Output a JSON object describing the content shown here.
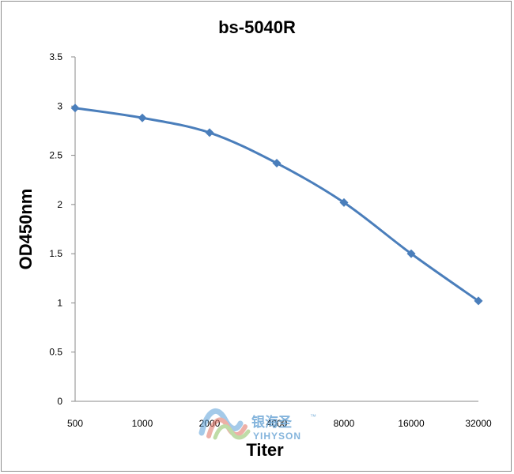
{
  "chart_data": {
    "type": "line",
    "title": "bs-5040R",
    "xlabel": "Titer",
    "ylabel": "OD450nm",
    "categories": [
      "500",
      "1000",
      "2000",
      "4000",
      "8000",
      "16000",
      "32000"
    ],
    "series": [
      {
        "values": [
          2.98,
          2.88,
          2.73,
          2.42,
          2.02,
          1.5,
          1.02
        ]
      }
    ],
    "ylim": [
      0,
      3.5
    ],
    "yticks": [
      "0",
      "0.5",
      "1",
      "1.5",
      "2",
      "2.5",
      "3",
      "3.5"
    ],
    "grid": false,
    "series_color": "#4a7ebb"
  },
  "watermark": {
    "cn": "银海圣",
    "tm": "™",
    "en": "YIHYSON"
  }
}
